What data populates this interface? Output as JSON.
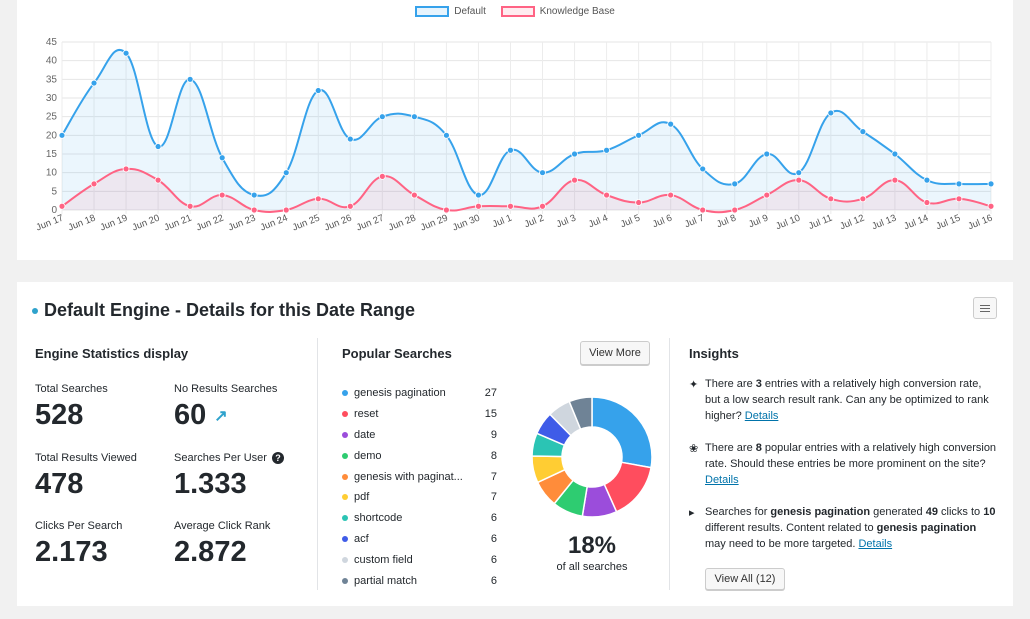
{
  "colors": {
    "default": "#36a2eb",
    "knowledge_base": "#ff6384",
    "accent": "#2ea2cc"
  },
  "chart_data": {
    "type": "line",
    "categories": [
      "Jun 17",
      "Jun 18",
      "Jun 19",
      "Jun 20",
      "Jun 21",
      "Jun 22",
      "Jun 23",
      "Jun 24",
      "Jun 25",
      "Jun 26",
      "Jun 27",
      "Jun 28",
      "Jun 29",
      "Jun 30",
      "Jul 1",
      "Jul 2",
      "Jul 3",
      "Jul 4",
      "Jul 5",
      "Jul 6",
      "Jul 7",
      "Jul 8",
      "Jul 9",
      "Jul 10",
      "Jul 11",
      "Jul 12",
      "Jul 13",
      "Jul 14",
      "Jul 15",
      "Jul 16"
    ],
    "series": [
      {
        "name": "Default",
        "color": "#36a2eb",
        "values": [
          20,
          34,
          42,
          17,
          35,
          14,
          4,
          10,
          32,
          19,
          25,
          25,
          20,
          4,
          16,
          10,
          15,
          16,
          20,
          23,
          11,
          7,
          15,
          10,
          26,
          21,
          15,
          8,
          7,
          7
        ]
      },
      {
        "name": "Knowledge Base",
        "color": "#ff6384",
        "values": [
          1,
          7,
          11,
          8,
          1,
          4,
          0,
          0,
          3,
          1,
          9,
          4,
          0,
          1,
          1,
          1,
          8,
          4,
          2,
          4,
          0,
          0,
          4,
          8,
          3,
          3,
          8,
          2,
          3,
          1
        ]
      }
    ],
    "ylim": [
      0,
      45
    ],
    "yticks": [
      0,
      5,
      10,
      15,
      20,
      25,
      30,
      35,
      40,
      45
    ],
    "grid": true,
    "legend": "top-center"
  },
  "details": {
    "title": "Default Engine - Details for this Date Range",
    "stats_heading": "Engine Statistics display",
    "stats": {
      "total_searches": {
        "label": "Total Searches",
        "value": "528"
      },
      "no_results": {
        "label": "No Results Searches",
        "value": "60"
      },
      "total_viewed": {
        "label": "Total Results Viewed",
        "value": "478"
      },
      "per_user": {
        "label": "Searches Per User",
        "value": "1.333"
      },
      "clicks_per_search": {
        "label": "Clicks Per Search",
        "value": "2.173"
      },
      "avg_rank": {
        "label": "Average Click Rank",
        "value": "2.872"
      }
    },
    "popular": {
      "heading": "Popular Searches",
      "view_more": "View More",
      "items": [
        {
          "term": "genesis pagination",
          "count": 27,
          "color": "#36a2eb"
        },
        {
          "term": "reset",
          "count": 15,
          "color": "#ff4d5e"
        },
        {
          "term": "date",
          "count": 9,
          "color": "#9b4ddb"
        },
        {
          "term": "demo",
          "count": 8,
          "color": "#2ecc71"
        },
        {
          "term": "genesis with paginat...",
          "count": 7,
          "color": "#ff8c3a"
        },
        {
          "term": "pdf",
          "count": 7,
          "color": "#ffcd33"
        },
        {
          "term": "shortcode",
          "count": 6,
          "color": "#2bc4b4"
        },
        {
          "term": "acf",
          "count": 6,
          "color": "#3f5ce8"
        },
        {
          "term": "custom field",
          "count": 6,
          "color": "#cfd6de"
        },
        {
          "term": "partial match",
          "count": 6,
          "color": "#6f8396"
        }
      ],
      "percent": "18%",
      "percent_caption": "of all searches"
    },
    "insights": {
      "heading": "Insights",
      "i1": {
        "pre": "There are ",
        "num": "3",
        "post": " entries with a relatively high conversion rate, but a low search result rank. Can any be optimized to rank higher? ",
        "link": "Details"
      },
      "i2": {
        "pre": "There are ",
        "num": "8",
        "post": " popular entries with a relatively high conversion rate. Should these entries be more prominent on the site? ",
        "link": "Details"
      },
      "i3": {
        "a": "Searches for ",
        "term1": "genesis pagination",
        "b": " generated ",
        "clicks": "49",
        "c": " clicks to ",
        "results": "10",
        "d": " different results. Content related to ",
        "term2": "genesis pagination",
        "e": " may need to be more targeted. ",
        "link": "Details"
      },
      "view_all": "View All (12)"
    }
  }
}
